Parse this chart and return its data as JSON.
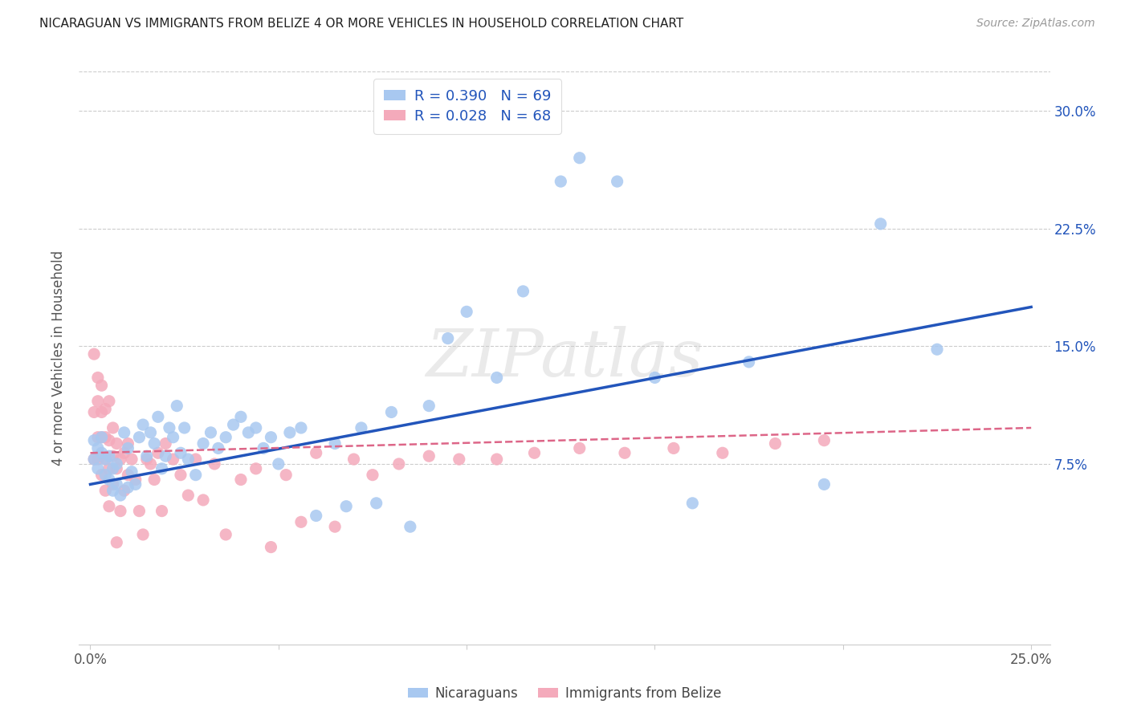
{
  "title": "NICARAGUAN VS IMMIGRANTS FROM BELIZE 4 OR MORE VEHICLES IN HOUSEHOLD CORRELATION CHART",
  "source": "Source: ZipAtlas.com",
  "ylabel": "4 or more Vehicles in Household",
  "xlim": [
    -0.003,
    0.255
  ],
  "ylim": [
    -0.04,
    0.325
  ],
  "xtick_positions": [
    0.0,
    0.05,
    0.1,
    0.15,
    0.2,
    0.25
  ],
  "xtick_labels": [
    "0.0%",
    "",
    "",
    "",
    "",
    "25.0%"
  ],
  "ytick_positions": [
    0.075,
    0.15,
    0.225,
    0.3
  ],
  "ytick_labels": [
    "7.5%",
    "15.0%",
    "22.5%",
    "30.0%"
  ],
  "legend_labels": [
    "Nicaraguans",
    "Immigrants from Belize"
  ],
  "blue_color": "#A8C8F0",
  "pink_color": "#F4AABB",
  "blue_line_color": "#2255BB",
  "pink_line_color": "#DD6688",
  "watermark": "ZIPatlas",
  "R_blue": 0.39,
  "N_blue": 69,
  "R_pink": 0.028,
  "N_pink": 68,
  "blue_line_x0": 0.0,
  "blue_line_y0": 0.062,
  "blue_line_x1": 0.25,
  "blue_line_y1": 0.175,
  "pink_line_x0": 0.0,
  "pink_line_y0": 0.082,
  "pink_line_x1": 0.25,
  "pink_line_y1": 0.098,
  "blue_scatter_x": [
    0.001,
    0.001,
    0.002,
    0.002,
    0.003,
    0.003,
    0.004,
    0.004,
    0.005,
    0.005,
    0.006,
    0.006,
    0.007,
    0.007,
    0.008,
    0.009,
    0.01,
    0.01,
    0.011,
    0.012,
    0.013,
    0.014,
    0.015,
    0.016,
    0.017,
    0.018,
    0.019,
    0.02,
    0.021,
    0.022,
    0.023,
    0.024,
    0.025,
    0.026,
    0.028,
    0.03,
    0.032,
    0.034,
    0.036,
    0.038,
    0.04,
    0.042,
    0.044,
    0.046,
    0.048,
    0.05,
    0.053,
    0.056,
    0.06,
    0.065,
    0.068,
    0.072,
    0.076,
    0.08,
    0.085,
    0.09,
    0.095,
    0.1,
    0.108,
    0.115,
    0.125,
    0.13,
    0.14,
    0.15,
    0.16,
    0.175,
    0.195,
    0.21,
    0.225
  ],
  "blue_scatter_y": [
    0.078,
    0.09,
    0.072,
    0.085,
    0.082,
    0.092,
    0.068,
    0.078,
    0.065,
    0.08,
    0.058,
    0.072,
    0.062,
    0.075,
    0.055,
    0.095,
    0.06,
    0.085,
    0.07,
    0.062,
    0.092,
    0.1,
    0.08,
    0.095,
    0.088,
    0.105,
    0.072,
    0.08,
    0.098,
    0.092,
    0.112,
    0.082,
    0.098,
    0.078,
    0.068,
    0.088,
    0.095,
    0.085,
    0.092,
    0.1,
    0.105,
    0.095,
    0.098,
    0.085,
    0.092,
    0.075,
    0.095,
    0.098,
    0.042,
    0.088,
    0.048,
    0.098,
    0.05,
    0.108,
    0.035,
    0.112,
    0.155,
    0.172,
    0.13,
    0.185,
    0.255,
    0.27,
    0.255,
    0.13,
    0.05,
    0.14,
    0.062,
    0.228,
    0.148
  ],
  "pink_scatter_x": [
    0.001,
    0.001,
    0.001,
    0.002,
    0.002,
    0.002,
    0.002,
    0.003,
    0.003,
    0.003,
    0.003,
    0.004,
    0.004,
    0.004,
    0.004,
    0.005,
    0.005,
    0.005,
    0.005,
    0.006,
    0.006,
    0.006,
    0.007,
    0.007,
    0.007,
    0.008,
    0.008,
    0.009,
    0.009,
    0.01,
    0.01,
    0.011,
    0.012,
    0.013,
    0.014,
    0.015,
    0.016,
    0.017,
    0.018,
    0.019,
    0.02,
    0.022,
    0.024,
    0.026,
    0.028,
    0.03,
    0.033,
    0.036,
    0.04,
    0.044,
    0.048,
    0.052,
    0.056,
    0.06,
    0.065,
    0.07,
    0.075,
    0.082,
    0.09,
    0.098,
    0.108,
    0.118,
    0.13,
    0.142,
    0.155,
    0.168,
    0.182,
    0.195
  ],
  "pink_scatter_y": [
    0.078,
    0.108,
    0.145,
    0.092,
    0.115,
    0.13,
    0.078,
    0.068,
    0.092,
    0.108,
    0.125,
    0.078,
    0.058,
    0.092,
    0.11,
    0.048,
    0.072,
    0.09,
    0.115,
    0.062,
    0.08,
    0.098,
    0.025,
    0.072,
    0.088,
    0.045,
    0.078,
    0.058,
    0.082,
    0.068,
    0.088,
    0.078,
    0.065,
    0.045,
    0.03,
    0.078,
    0.075,
    0.065,
    0.082,
    0.045,
    0.088,
    0.078,
    0.068,
    0.055,
    0.078,
    0.052,
    0.075,
    0.03,
    0.065,
    0.072,
    0.022,
    0.068,
    0.038,
    0.082,
    0.035,
    0.078,
    0.068,
    0.075,
    0.08,
    0.078,
    0.078,
    0.082,
    0.085,
    0.082,
    0.085,
    0.082,
    0.088,
    0.09
  ]
}
